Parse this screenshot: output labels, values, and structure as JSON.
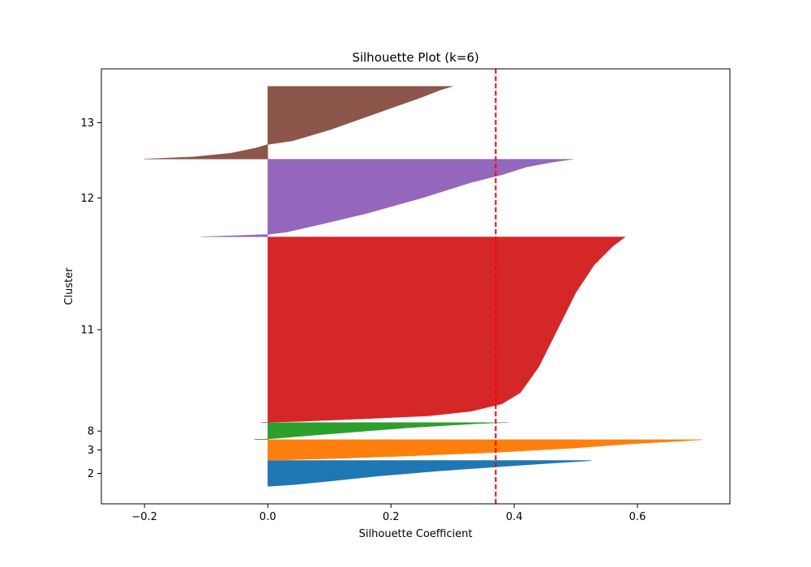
{
  "chart_data": {
    "type": "area",
    "title": "Silhouette Plot (k=6)",
    "xlabel": "Silhouette Coefficient",
    "ylabel": "Cluster",
    "xlim": [
      -0.27,
      0.75
    ],
    "xticks": [
      "−0.2",
      "0.0",
      "0.2",
      "0.4",
      "0.6"
    ],
    "xtick_values": [
      -0.2,
      0.0,
      0.2,
      0.4,
      0.6
    ],
    "ylim": [
      0,
      2238
    ],
    "average_silhouette": 0.37,
    "average_line_color": "#ff0000",
    "grid": false,
    "legend": "none",
    "clusters": [
      {
        "label": "2",
        "color": "#1f77b4",
        "y_start": 90,
        "y_end": 223,
        "profile": [
          [
            0,
            0.0
          ],
          [
            0.06,
            0.04
          ],
          [
            0.2,
            0.1
          ],
          [
            0.4,
            0.18
          ],
          [
            0.6,
            0.28
          ],
          [
            0.8,
            0.4
          ],
          [
            0.88,
            0.45
          ],
          [
            0.94,
            0.49
          ],
          [
            0.975,
            0.515
          ],
          [
            1,
            0.525
          ]
        ]
      },
      {
        "label": "3",
        "color": "#ff7f0e",
        "y_start": 224,
        "y_end": 330,
        "profile": [
          [
            0,
            0.0
          ],
          [
            0.08,
            0.1
          ],
          [
            0.2,
            0.22
          ],
          [
            0.4,
            0.38
          ],
          [
            0.6,
            0.5
          ],
          [
            0.8,
            0.59
          ],
          [
            0.88,
            0.64
          ],
          [
            0.93,
            0.67
          ],
          [
            0.97,
            0.69
          ],
          [
            1,
            0.705
          ]
        ]
      },
      {
        "label": "8",
        "color": "#2ca02c",
        "y_start": 331,
        "y_end": 418,
        "profile": [
          [
            0,
            -0.022
          ],
          [
            0.03,
            0.0
          ],
          [
            0.12,
            0.03
          ],
          [
            0.3,
            0.09
          ],
          [
            0.5,
            0.16
          ],
          [
            0.7,
            0.23
          ],
          [
            0.85,
            0.3
          ],
          [
            0.94,
            0.34
          ],
          [
            0.98,
            0.37
          ],
          [
            1,
            0.39
          ]
        ]
      },
      {
        "label": "11",
        "color": "#d62728",
        "y_start": 419,
        "y_end": 1373,
        "profile": [
          [
            0,
            -0.01
          ],
          [
            0.005,
            0.05
          ],
          [
            0.02,
            0.16
          ],
          [
            0.035,
            0.26
          ],
          [
            0.06,
            0.33
          ],
          [
            0.1,
            0.38
          ],
          [
            0.16,
            0.41
          ],
          [
            0.3,
            0.44
          ],
          [
            0.5,
            0.47
          ],
          [
            0.7,
            0.5
          ],
          [
            0.85,
            0.53
          ],
          [
            0.95,
            0.56
          ],
          [
            1,
            0.58
          ]
        ]
      },
      {
        "label": "12",
        "color": "#9467bd",
        "y_start": 1374,
        "y_end": 1773,
        "profile": [
          [
            0,
            -0.107
          ],
          [
            0.01,
            -0.07
          ],
          [
            0.03,
            0.0
          ],
          [
            0.06,
            0.03
          ],
          [
            0.15,
            0.08
          ],
          [
            0.3,
            0.16
          ],
          [
            0.5,
            0.25
          ],
          [
            0.7,
            0.33
          ],
          [
            0.8,
            0.38
          ],
          [
            0.9,
            0.42
          ],
          [
            0.96,
            0.46
          ],
          [
            1,
            0.495
          ]
        ]
      },
      {
        "label": "13",
        "color": "#8c564b",
        "y_start": 1774,
        "y_end": 2148,
        "profile": [
          [
            0,
            -0.2
          ],
          [
            0.03,
            -0.12
          ],
          [
            0.08,
            -0.06
          ],
          [
            0.15,
            -0.02
          ],
          [
            0.2,
            0.0
          ],
          [
            0.25,
            0.04
          ],
          [
            0.4,
            0.1
          ],
          [
            0.55,
            0.15
          ],
          [
            0.7,
            0.2
          ],
          [
            0.85,
            0.25
          ],
          [
            0.95,
            0.28
          ],
          [
            1,
            0.3
          ]
        ]
      }
    ]
  }
}
